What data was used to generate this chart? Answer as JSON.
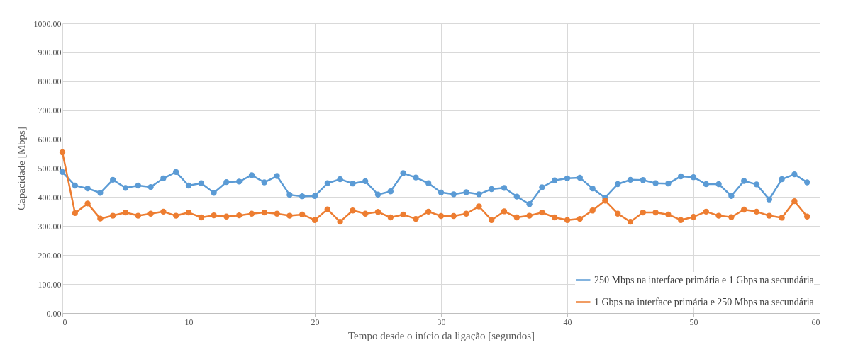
{
  "chart_data": {
    "type": "line",
    "xlabel": "Tempo desde o início da ligação [segundos]",
    "ylabel": "Capacidade [Mbps]",
    "x": [
      0,
      1,
      2,
      3,
      4,
      5,
      6,
      7,
      8,
      9,
      10,
      11,
      12,
      13,
      14,
      15,
      16,
      17,
      18,
      19,
      20,
      21,
      22,
      23,
      24,
      25,
      26,
      27,
      28,
      29,
      30,
      31,
      32,
      33,
      34,
      35,
      36,
      37,
      38,
      39,
      40,
      41,
      42,
      43,
      44,
      45,
      46,
      47,
      48,
      49,
      50,
      51,
      52,
      53,
      54,
      55,
      56,
      57,
      58,
      59
    ],
    "series": [
      {
        "name": "250 Mbps na interface primária e 1 Gbps na secundária",
        "color": "#5b9bd5",
        "values": [
          487,
          440,
          430,
          415,
          460,
          432,
          440,
          435,
          465,
          487,
          440,
          448,
          415,
          452,
          454,
          476,
          451,
          473,
          408,
          403,
          404,
          448,
          462,
          447,
          455,
          409,
          420,
          483,
          468,
          448,
          416,
          410,
          417,
          410,
          428,
          432,
          402,
          376,
          434,
          458,
          465,
          467,
          430,
          398,
          445,
          460,
          459,
          448,
          447,
          472,
          469,
          445,
          445,
          404,
          456,
          444,
          392,
          462,
          479,
          451
        ]
      },
      {
        "name": "1 Gbps na interface primária e 250 Mbps na secundária",
        "color": "#ed7d31",
        "values": [
          555,
          345,
          378,
          326,
          336,
          347,
          336,
          343,
          350,
          336,
          347,
          330,
          337,
          333,
          337,
          343,
          347,
          343,
          336,
          340,
          321,
          358,
          315,
          354,
          343,
          349,
          330,
          340,
          325,
          350,
          335,
          335,
          343,
          368,
          321,
          351,
          330,
          336,
          347,
          330,
          321,
          325,
          354,
          388,
          343,
          315,
          347,
          347,
          340,
          321,
          332,
          350,
          336,
          331,
          357,
          350,
          336,
          329,
          386,
          333
        ]
      }
    ],
    "xlim": [
      0,
      60
    ],
    "xticks": [
      0,
      10,
      20,
      30,
      40,
      50,
      60
    ],
    "ylim": [
      0,
      1000
    ],
    "yticks": [
      {
        "value": 0,
        "label": "0.00"
      },
      {
        "value": 100,
        "label": "100.00"
      },
      {
        "value": 200,
        "label": "200.00"
      },
      {
        "value": 300,
        "label": "300.00"
      },
      {
        "value": 400,
        "label": "400.00"
      },
      {
        "value": 500,
        "label": "500.00"
      },
      {
        "value": 600,
        "label": "600.00"
      },
      {
        "value": 700,
        "label": "700.00"
      },
      {
        "value": 800,
        "label": "800.00"
      },
      {
        "value": 900,
        "label": "900.00"
      },
      {
        "value": 1000,
        "label": "1000.00"
      }
    ],
    "grid": true,
    "legend": "bottom right",
    "marker": "circle",
    "line_style": "solid"
  }
}
